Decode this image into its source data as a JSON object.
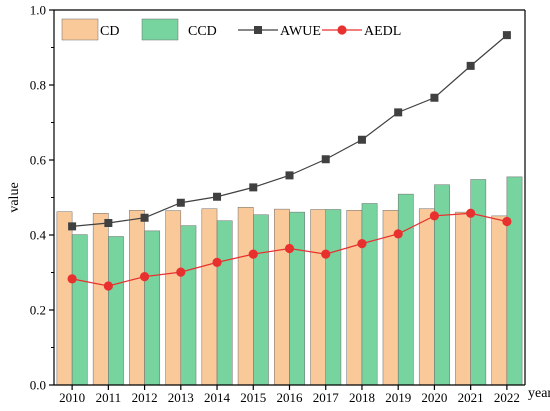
{
  "chart_data": {
    "type": "bar",
    "categories": [
      "2010",
      "2011",
      "2012",
      "2013",
      "2014",
      "2015",
      "2016",
      "2017",
      "2018",
      "2019",
      "2020",
      "2021",
      "2022"
    ],
    "series": [
      {
        "name": "CD",
        "kind": "bar",
        "color": "#F9C99A",
        "values": [
          0.462,
          0.458,
          0.466,
          0.465,
          0.47,
          0.474,
          0.469,
          0.468,
          0.466,
          0.466,
          0.47,
          0.461,
          0.451
        ]
      },
      {
        "name": "CCD",
        "kind": "bar",
        "color": "#77D49F",
        "values": [
          0.401,
          0.396,
          0.411,
          0.425,
          0.438,
          0.454,
          0.461,
          0.468,
          0.484,
          0.509,
          0.534,
          0.548,
          0.555
        ]
      },
      {
        "name": "AWUE",
        "kind": "line",
        "color": "#404040",
        "marker": "square",
        "values": [
          0.423,
          0.432,
          0.446,
          0.486,
          0.502,
          0.527,
          0.559,
          0.602,
          0.654,
          0.727,
          0.766,
          0.851,
          0.933
        ]
      },
      {
        "name": "AEDL",
        "kind": "line",
        "color": "#E8312F",
        "marker": "circle",
        "values": [
          0.283,
          0.264,
          0.289,
          0.301,
          0.327,
          0.349,
          0.364,
          0.349,
          0.377,
          0.403,
          0.451,
          0.458,
          0.436
        ]
      }
    ],
    "xlabel": "year",
    "ylabel": "value",
    "ylim": [
      0.0,
      1.0
    ],
    "yticks": [
      "0.0",
      "0.2",
      "0.4",
      "0.6",
      "0.8",
      "1.0"
    ],
    "grid": false,
    "legend": "top"
  }
}
